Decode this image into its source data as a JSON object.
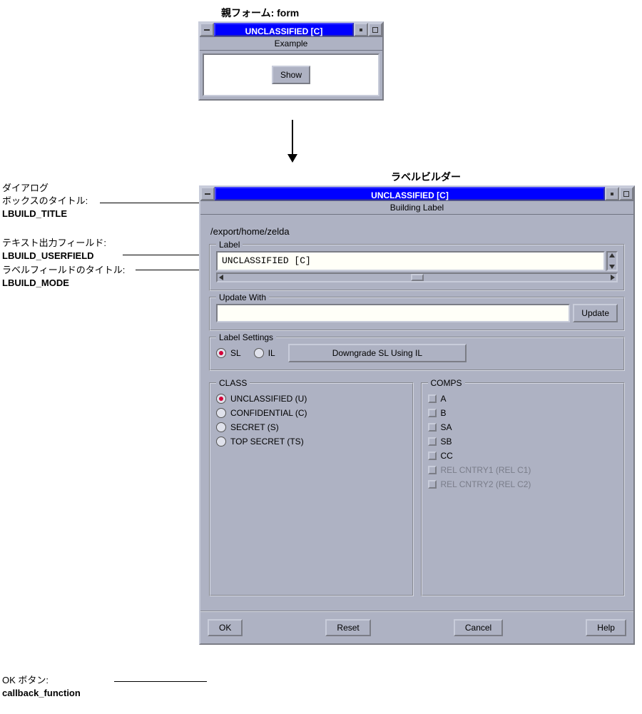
{
  "colors": {
    "titlebar_bg": "#0000ff",
    "titlebar_fg": "#ffffff",
    "widget_bg": "#aeb2c3",
    "field_bg": "#fffff8",
    "accent_radio": "#d40038",
    "disabled_text": "#7a7d8a"
  },
  "heading_parent": "親フォーム: form",
  "heading_builder": "ラベルビルダー",
  "annotations": {
    "title": {
      "line1": "ダイアログ",
      "line2": "ボックスのタイトル:",
      "bold": "LBUILD_TITLE"
    },
    "userfield": {
      "line1": "テキスト出力フィールド:",
      "bold": "LBUILD_USERFIELD"
    },
    "mode": {
      "line1": "ラベルフィールドのタイトル:",
      "bold": "LBUILD_MODE"
    },
    "ok": {
      "line1": "OK ボタン:",
      "bold": "callback_function"
    }
  },
  "parent_form": {
    "classification": "UNCLASSIFIED [C]",
    "subtitle": "Example",
    "button": "Show"
  },
  "dialog": {
    "classification": "UNCLASSIFIED [C]",
    "subtitle": "Building Label",
    "userfield": "/export/home/zelda",
    "label_group_title": "Label",
    "label_value": "UNCLASSIFIED [C]",
    "update_group_title": "Update With",
    "update_value": "",
    "update_button": "Update",
    "settings_group_title": "Label Settings",
    "settings_options": {
      "sl": "SL",
      "il": "IL",
      "selected": "sl"
    },
    "downgrade_button": "Downgrade SL Using IL",
    "class_group_title": "CLASS",
    "class_options": [
      {
        "label": "UNCLASSIFIED (U)",
        "selected": true
      },
      {
        "label": "CONFIDENTIAL (C)",
        "selected": false
      },
      {
        "label": "SECRET (S)",
        "selected": false
      },
      {
        "label": "TOP SECRET (TS)",
        "selected": false
      }
    ],
    "comps_group_title": "COMPS",
    "comps_options": [
      {
        "label": "A",
        "disabled": false
      },
      {
        "label": "B",
        "disabled": false
      },
      {
        "label": "SA",
        "disabled": false
      },
      {
        "label": "SB",
        "disabled": false
      },
      {
        "label": "CC",
        "disabled": false
      },
      {
        "label": "REL CNTRY1 (REL C1)",
        "disabled": true
      },
      {
        "label": "REL CNTRY2 (REL C2)",
        "disabled": true
      }
    ],
    "buttons": {
      "ok": "OK",
      "reset": "Reset",
      "cancel": "Cancel",
      "help": "Help"
    }
  }
}
